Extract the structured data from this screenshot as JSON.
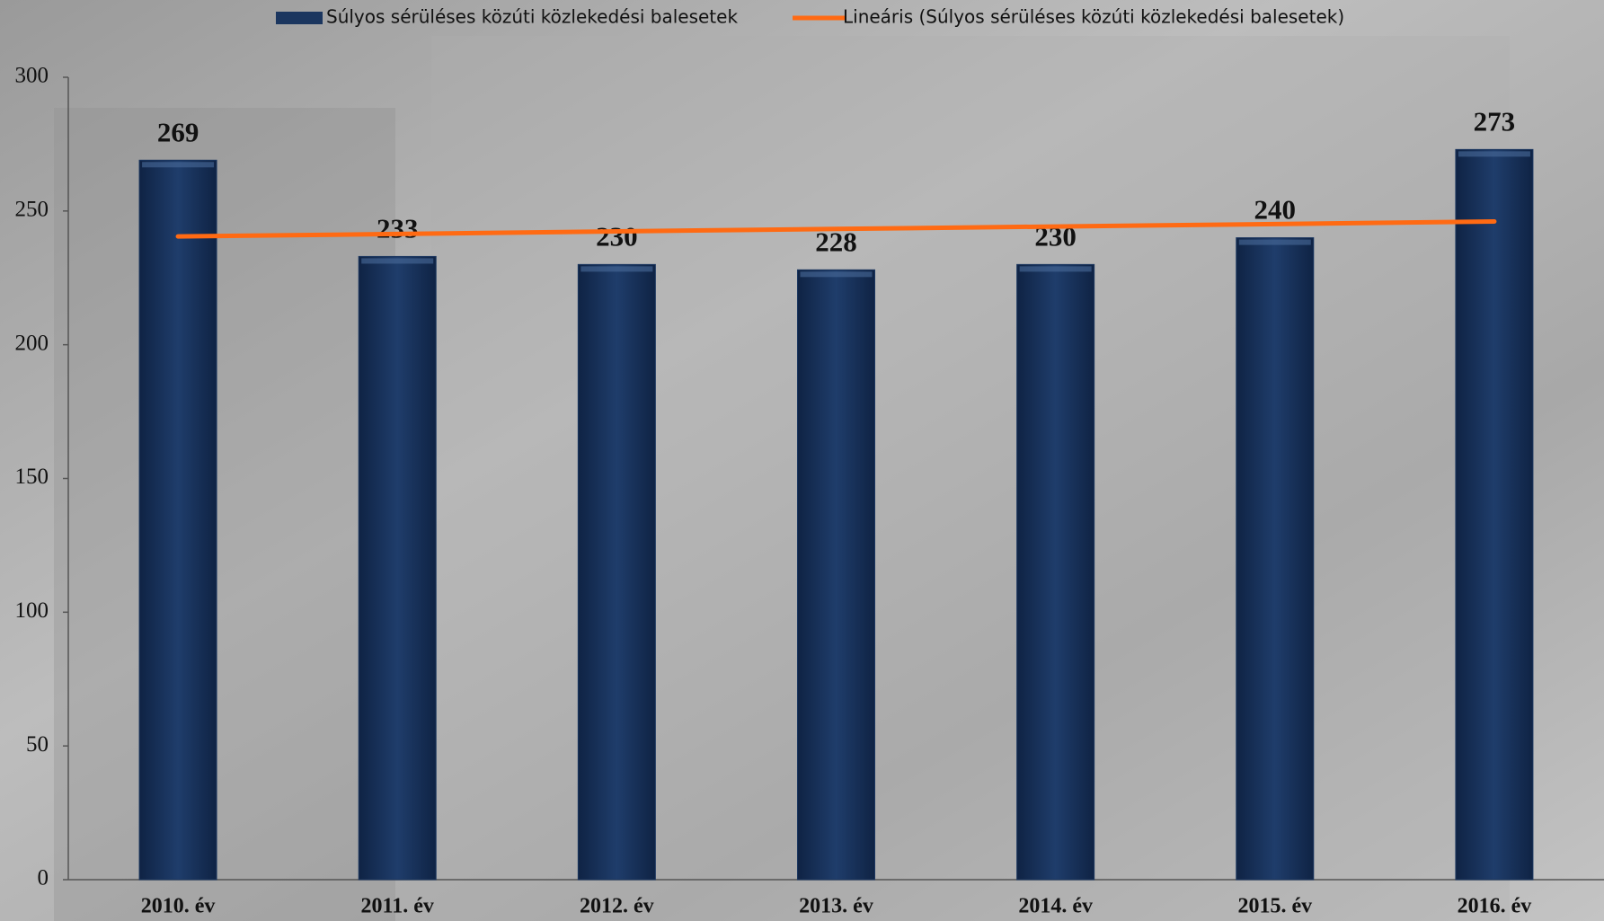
{
  "chart_data": {
    "type": "bar",
    "categories": [
      "2010. év",
      "2011. év",
      "2012. év",
      "2013. év",
      "2014. év",
      "2015. év",
      "2016. év"
    ],
    "series": [
      {
        "name": "Súlyos sérüléses közúti közlekedési balesetek",
        "color": "#1b365f",
        "values": [
          269,
          233,
          230,
          228,
          230,
          240,
          273
        ]
      },
      {
        "name": "Lineáris (Súlyos sérüléses közúti közlekedési balesetek)",
        "color": "#ff6a13",
        "type": "line",
        "values": [
          240.5,
          241.4,
          242.4,
          243.3,
          244.2,
          245.1,
          246.1
        ]
      }
    ],
    "ylim": [
      0,
      300
    ],
    "yticks": [
      0,
      50,
      100,
      150,
      200,
      250,
      300
    ],
    "legend": "top"
  }
}
